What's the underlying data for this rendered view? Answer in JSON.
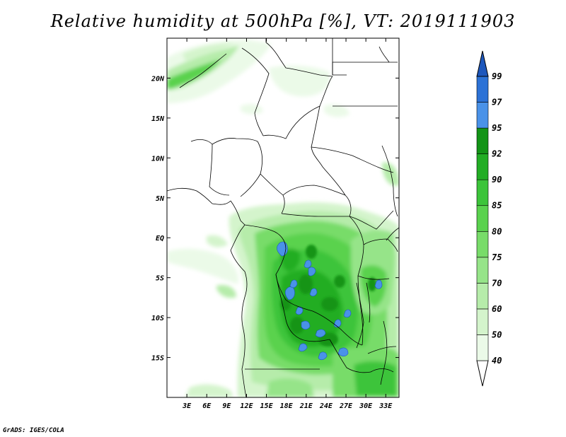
{
  "title": "Relative humidity at 500hPa [%], VT: 2019111903",
  "footer": "GrADS: IGES/COLA",
  "map": {
    "projection": "lat-lon",
    "lon_range": [
      0,
      35
    ],
    "lat_range": [
      -20,
      25
    ],
    "lat_ticks": [
      {
        "value": 20,
        "label": "20N"
      },
      {
        "value": 15,
        "label": "15N"
      },
      {
        "value": 10,
        "label": "10N"
      },
      {
        "value": 5,
        "label": "5N"
      },
      {
        "value": 0,
        "label": "EQ"
      },
      {
        "value": -5,
        "label": "5S"
      },
      {
        "value": -10,
        "label": "10S"
      },
      {
        "value": -15,
        "label": "15S"
      }
    ],
    "lon_ticks": [
      {
        "value": 3,
        "label": "3E"
      },
      {
        "value": 6,
        "label": "6E"
      },
      {
        "value": 9,
        "label": "9E"
      },
      {
        "value": 12,
        "label": "12E"
      },
      {
        "value": 15,
        "label": "15E"
      },
      {
        "value": 18,
        "label": "18E"
      },
      {
        "value": 21,
        "label": "21E"
      },
      {
        "value": 24,
        "label": "24E"
      },
      {
        "value": 27,
        "label": "27E"
      },
      {
        "value": 30,
        "label": "30E"
      },
      {
        "value": 33,
        "label": "33E"
      }
    ]
  },
  "colorbar": {
    "bins": [
      {
        "color": "#ffffff"
      },
      {
        "label": "40",
        "color": "#ebfae8"
      },
      {
        "label": "50",
        "color": "#d4f4cc"
      },
      {
        "label": "60",
        "color": "#b6ecaa"
      },
      {
        "label": "70",
        "color": "#96e489"
      },
      {
        "label": "75",
        "color": "#78dc69"
      },
      {
        "label": "80",
        "color": "#5ad24e"
      },
      {
        "label": "85",
        "color": "#3cc43a"
      },
      {
        "label": "90",
        "color": "#22ad24"
      },
      {
        "label": "92",
        "color": "#139416"
      },
      {
        "label": "95",
        "color": "#4a92e8"
      },
      {
        "label": "97",
        "color": "#2c72d6"
      },
      {
        "label": "99",
        "color": "#1d57bc"
      }
    ]
  }
}
